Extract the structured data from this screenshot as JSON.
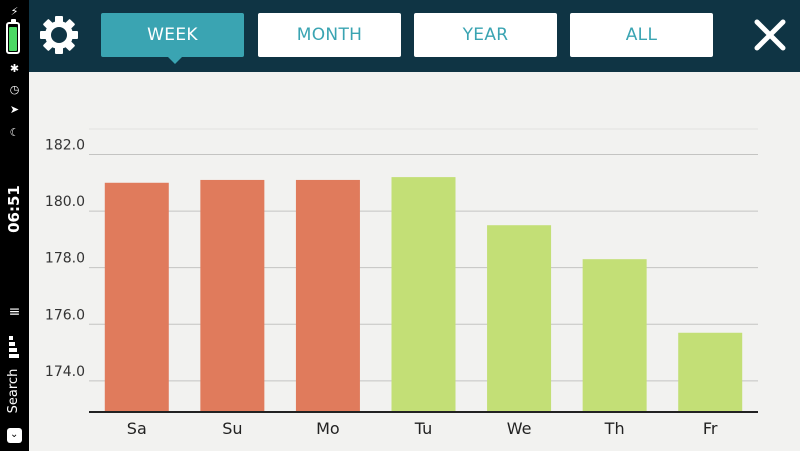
{
  "status_bar": {
    "time": "06:51",
    "back_app": "Search",
    "back_icon": "chevron-down-icon",
    "battery_color": "#4cd964"
  },
  "toolbar": {
    "settings_icon": "gear-icon",
    "close_icon": "close-icon",
    "tabs": [
      {
        "label": "WEEK",
        "active": true
      },
      {
        "label": "MONTH",
        "active": false
      },
      {
        "label": "YEAR",
        "active": false
      },
      {
        "label": "ALL",
        "active": false
      }
    ]
  },
  "colors": {
    "nav_background": "#0f3444",
    "accent": "#3aa4b2",
    "bar_past": "#e07b5c",
    "bar_current": "#c3df76"
  },
  "chart_data": {
    "type": "bar",
    "categories": [
      "Sa",
      "Su",
      "Mo",
      "Tu",
      "We",
      "Th",
      "Fr"
    ],
    "values": [
      181.0,
      181.1,
      181.1,
      181.2,
      179.5,
      178.3,
      175.7
    ],
    "bar_colors": [
      "#e07b5c",
      "#e07b5c",
      "#e07b5c",
      "#c3df76",
      "#c3df76",
      "#c3df76",
      "#c3df76"
    ],
    "y_ticks": [
      "174.0",
      "176.0",
      "178.0",
      "180.0",
      "182.0"
    ],
    "ylim": [
      172.9,
      183.0
    ],
    "grid": true,
    "legend": "none"
  }
}
